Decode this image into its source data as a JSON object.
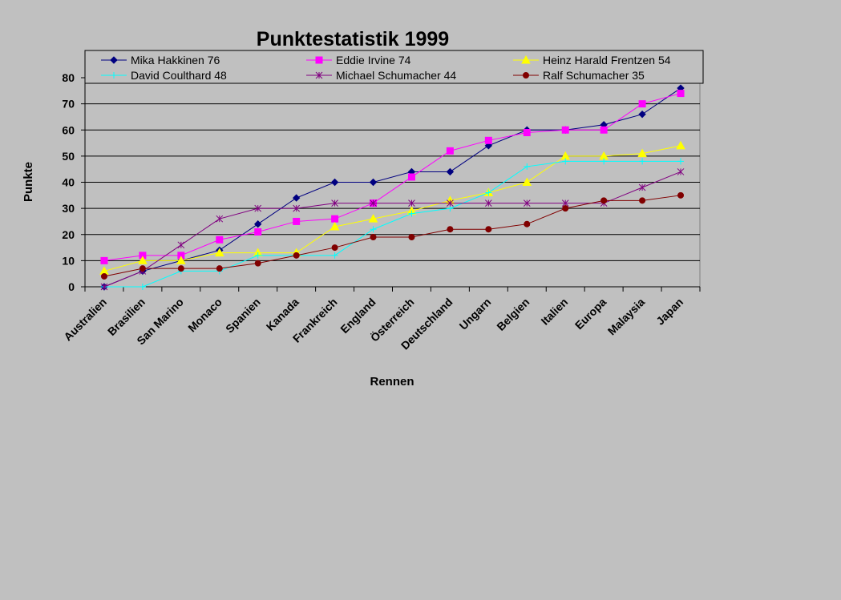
{
  "chart_data": {
    "type": "line",
    "title": "Punktestatistik 1999",
    "xlabel": "Rennen",
    "ylabel": "Punkte",
    "ylim": [
      0,
      80
    ],
    "yticks": [
      "0",
      "10",
      "20",
      "30",
      "40",
      "50",
      "60",
      "70",
      "80"
    ],
    "grid": "horizontal",
    "legend_position": "top",
    "categories": [
      "Australien",
      "Brasilien",
      "San Marino",
      "Monaco",
      "Spanien",
      "Kanada",
      "Frankreich",
      "England",
      "Österreich",
      "Deutschland",
      "Ungarn",
      "Belgien",
      "Italien",
      "Europa",
      "Malaysia",
      "Japan"
    ],
    "series": [
      {
        "name": "Mika Hakkinen 76",
        "color": "#000080",
        "marker": "diamond",
        "values": [
          0,
          6,
          10,
          14,
          24,
          34,
          40,
          40,
          44,
          44,
          54,
          60,
          60,
          62,
          66,
          76
        ]
      },
      {
        "name": "Eddie Irvine 74",
        "color": "#ff00ff",
        "marker": "square",
        "values": [
          10,
          12,
          12,
          18,
          21,
          25,
          26,
          32,
          42,
          52,
          56,
          59,
          60,
          60,
          70,
          74
        ]
      },
      {
        "name": "Heinz Harald Frentzen 54",
        "color": "#ffff00",
        "marker": "triangle",
        "values": [
          6,
          10,
          10,
          13,
          13,
          13,
          23,
          26,
          29,
          33,
          36,
          40,
          50,
          50,
          51,
          54
        ]
      },
      {
        "name": "David Coulthard 48",
        "color": "#00ffff",
        "marker": "cross",
        "values": [
          0,
          0,
          6,
          6,
          12,
          12,
          12,
          22,
          28,
          30,
          36,
          46,
          48,
          48,
          48,
          48
        ]
      },
      {
        "name": "Michael Schumacher 44",
        "color": "#800080",
        "marker": "star",
        "values": [
          0,
          6,
          16,
          26,
          30,
          30,
          32,
          32,
          32,
          32,
          32,
          32,
          32,
          32,
          38,
          44
        ]
      },
      {
        "name": "Ralf Schumacher 35",
        "color": "#800000",
        "marker": "circle",
        "values": [
          4,
          7,
          7,
          7,
          9,
          12,
          15,
          19,
          19,
          22,
          22,
          24,
          30,
          33,
          33,
          35
        ]
      }
    ]
  }
}
